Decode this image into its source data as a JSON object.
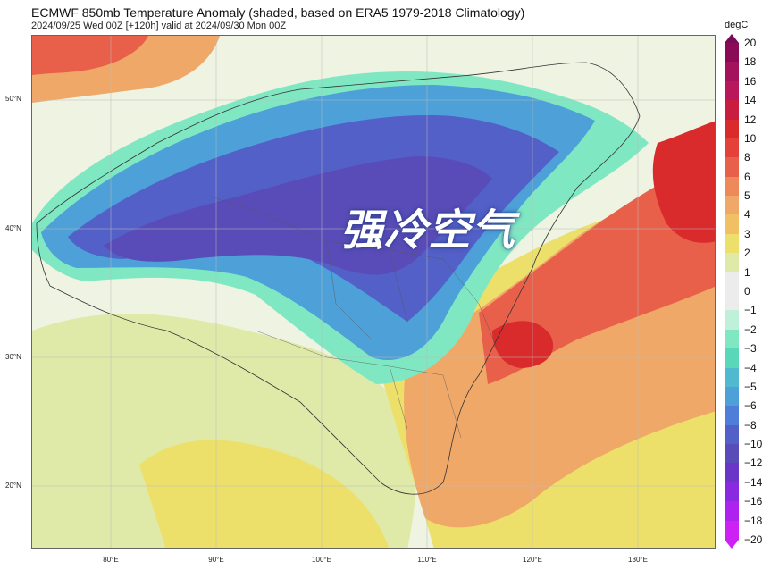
{
  "header": {
    "title": "ECMWF 850mb Temperature Anomaly (shaded, based on ERA5 1979-2018 Climatology)",
    "subtitle": "2024/09/25 Wed 00Z [+120h] valid at 2024/09/30 Mon 00Z"
  },
  "overlay_text": "强冷空气",
  "lat_labels": [
    "50°N",
    "40°N",
    "30°N",
    "20°N"
  ],
  "lon_labels": [
    "80°E",
    "90°E",
    "100°E",
    "110°E",
    "120°E",
    "130°E"
  ],
  "colorbar": {
    "unit": "degC",
    "labels": [
      "20",
      "18",
      "16",
      "14",
      "12",
      "10",
      "8",
      "6",
      "5",
      "4",
      "3",
      "2",
      "1",
      "0",
      "−1",
      "−2",
      "−3",
      "−4",
      "−5",
      "−6",
      "−8",
      "−10",
      "−12",
      "−14",
      "−16",
      "−18",
      "−20"
    ],
    "colors": [
      "#8b0a55",
      "#a3125a",
      "#b8185a",
      "#c81d3e",
      "#d92a2c",
      "#e3413a",
      "#e8604a",
      "#ee8a5a",
      "#f0a868",
      "#f2c064",
      "#ede06a",
      "#dfe9a8",
      "#ececec",
      "#ececec",
      "#bff0da",
      "#7fe8c2",
      "#5ad6b8",
      "#50b8cf",
      "#4da0d8",
      "#4f7ed8",
      "#5360c8",
      "#5a4cb8",
      "#6a36c8",
      "#8a2ae0",
      "#ad22ee",
      "#cc22f4"
    ],
    "top_color": "#7a0a55",
    "bottom_color": "#d01ef8"
  },
  "field_colors": {
    "land_neutral": "#eef3e2",
    "warm_light": "#dfe9a8",
    "warm_yellow": "#ede06a",
    "warm_orange": "#f0a868",
    "warm_deep": "#e8604a",
    "warm_red": "#d92a2c",
    "cold_teal": "#5ad6b8",
    "cold_light": "#7fe8c2",
    "cold_blue": "#4da0d8",
    "cold_deep": "#5360c8",
    "cold_core": "#5a4cb8"
  }
}
